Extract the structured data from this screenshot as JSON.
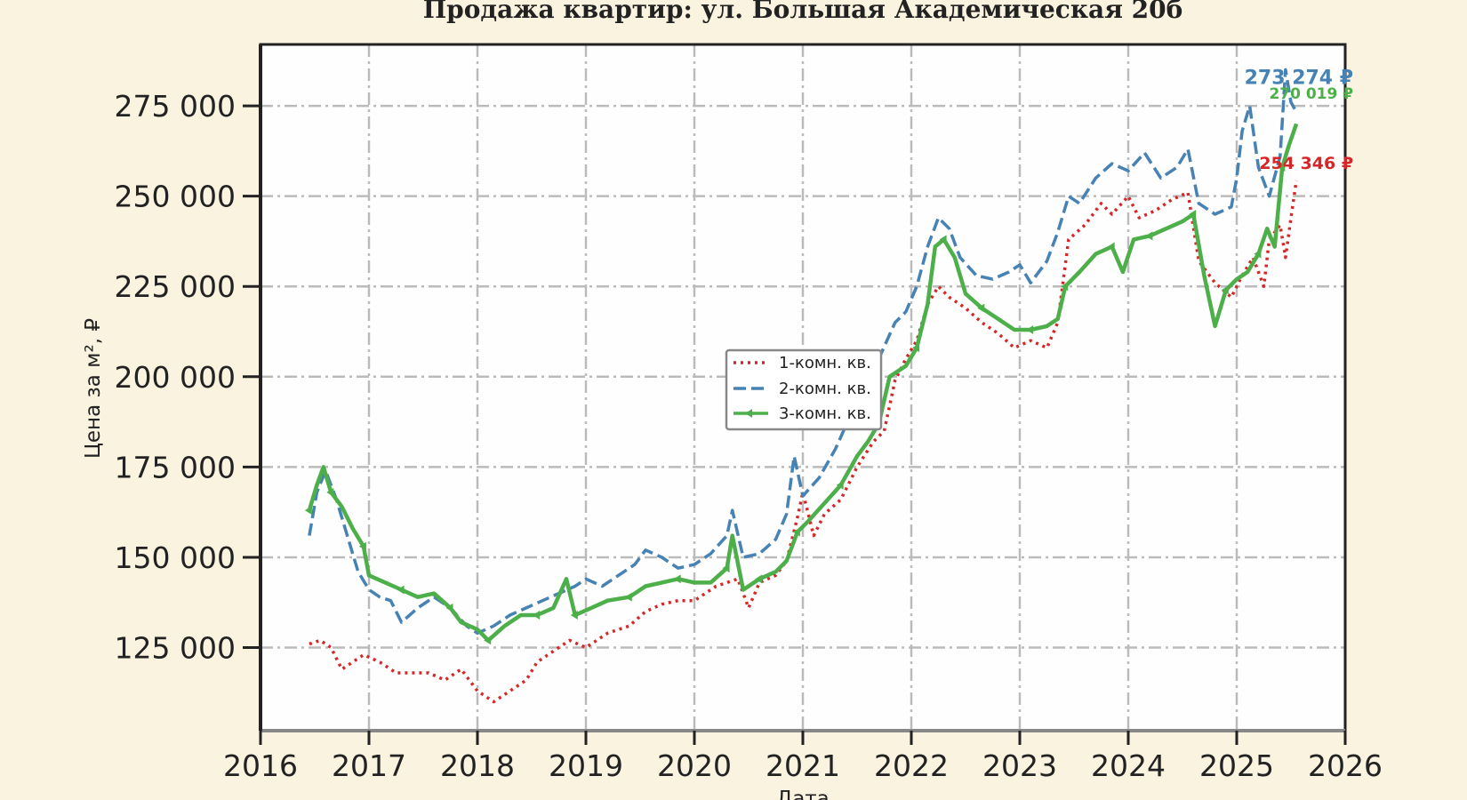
{
  "chart_data": {
    "type": "line",
    "title": "Продажа квартир: ул. Большая Академическая 20б",
    "xlabel": "Дата",
    "ylabel": "Цена за м², ₽",
    "xlim": [
      2016,
      2026
    ],
    "ylim": [
      102000,
      292000
    ],
    "x_ticks": [
      "2016",
      "2017",
      "2018",
      "2019",
      "2020",
      "2021",
      "2022",
      "2023",
      "2024",
      "2025",
      "2026"
    ],
    "y_ticks": [
      "125 000",
      "150 000",
      "175 000",
      "200 000",
      "225 000",
      "250 000",
      "275 000"
    ],
    "y_tick_values": [
      125000,
      150000,
      175000,
      200000,
      225000,
      250000,
      275000
    ],
    "grid": true,
    "legend_position": "center",
    "series": [
      {
        "name": "1-комн. кв.",
        "color": "#d62728",
        "style": "dotted",
        "final_label": "254 346 ₽",
        "points": [
          [
            2016.45,
            126000
          ],
          [
            2016.55,
            127000
          ],
          [
            2016.65,
            125000
          ],
          [
            2016.75,
            119000
          ],
          [
            2016.85,
            121000
          ],
          [
            2016.95,
            123000
          ],
          [
            2017.1,
            121000
          ],
          [
            2017.25,
            118000
          ],
          [
            2017.4,
            118000
          ],
          [
            2017.55,
            118000
          ],
          [
            2017.7,
            116000
          ],
          [
            2017.85,
            119000
          ],
          [
            2018.0,
            113000
          ],
          [
            2018.15,
            110000
          ],
          [
            2018.3,
            113000
          ],
          [
            2018.45,
            116000
          ],
          [
            2018.55,
            121000
          ],
          [
            2018.7,
            124000
          ],
          [
            2018.85,
            127000
          ],
          [
            2019.0,
            125000
          ],
          [
            2019.2,
            129000
          ],
          [
            2019.4,
            131000
          ],
          [
            2019.55,
            135000
          ],
          [
            2019.7,
            137000
          ],
          [
            2019.85,
            138000
          ],
          [
            2020.0,
            138000
          ],
          [
            2020.2,
            142000
          ],
          [
            2020.4,
            144000
          ],
          [
            2020.5,
            136000
          ],
          [
            2020.6,
            143000
          ],
          [
            2020.75,
            145000
          ],
          [
            2020.85,
            149000
          ],
          [
            2020.95,
            161000
          ],
          [
            2021.0,
            168000
          ],
          [
            2021.1,
            156000
          ],
          [
            2021.2,
            162000
          ],
          [
            2021.35,
            166000
          ],
          [
            2021.5,
            175000
          ],
          [
            2021.65,
            182000
          ],
          [
            2021.75,
            185000
          ],
          [
            2021.85,
            199000
          ],
          [
            2021.95,
            205000
          ],
          [
            2022.05,
            210000
          ],
          [
            2022.15,
            220000
          ],
          [
            2022.25,
            225000
          ],
          [
            2022.35,
            222000
          ],
          [
            2022.5,
            219000
          ],
          [
            2022.65,
            215000
          ],
          [
            2022.8,
            212000
          ],
          [
            2022.95,
            208000
          ],
          [
            2023.1,
            210000
          ],
          [
            2023.25,
            208000
          ],
          [
            2023.35,
            215000
          ],
          [
            2023.45,
            238000
          ],
          [
            2023.6,
            242000
          ],
          [
            2023.75,
            248000
          ],
          [
            2023.85,
            245000
          ],
          [
            2024.0,
            250000
          ],
          [
            2024.1,
            244000
          ],
          [
            2024.25,
            246000
          ],
          [
            2024.4,
            249000
          ],
          [
            2024.55,
            251000
          ],
          [
            2024.65,
            232000
          ],
          [
            2024.8,
            226000
          ],
          [
            2024.95,
            222000
          ],
          [
            2025.05,
            228000
          ],
          [
            2025.15,
            233000
          ],
          [
            2025.25,
            225000
          ],
          [
            2025.3,
            238000
          ],
          [
            2025.4,
            242000
          ],
          [
            2025.45,
            233000
          ],
          [
            2025.5,
            244000
          ],
          [
            2025.55,
            254346
          ]
        ]
      },
      {
        "name": "2-комн. кв.",
        "color": "#4682b4",
        "style": "dashed",
        "final_label": "273 274 ₽",
        "points": [
          [
            2016.45,
            156000
          ],
          [
            2016.52,
            168000
          ],
          [
            2016.6,
            174000
          ],
          [
            2016.7,
            166000
          ],
          [
            2016.8,
            156000
          ],
          [
            2016.9,
            146000
          ],
          [
            2017.0,
            141000
          ],
          [
            2017.1,
            139000
          ],
          [
            2017.2,
            138000
          ],
          [
            2017.3,
            132000
          ],
          [
            2017.45,
            136000
          ],
          [
            2017.6,
            139000
          ],
          [
            2017.75,
            136000
          ],
          [
            2017.9,
            131000
          ],
          [
            2018.0,
            129000
          ],
          [
            2018.15,
            131000
          ],
          [
            2018.3,
            134000
          ],
          [
            2018.45,
            136000
          ],
          [
            2018.6,
            138000
          ],
          [
            2018.75,
            140000
          ],
          [
            2018.9,
            142000
          ],
          [
            2019.0,
            144000
          ],
          [
            2019.15,
            142000
          ],
          [
            2019.3,
            145000
          ],
          [
            2019.45,
            148000
          ],
          [
            2019.55,
            152000
          ],
          [
            2019.7,
            150000
          ],
          [
            2019.85,
            147000
          ],
          [
            2020.0,
            148000
          ],
          [
            2020.15,
            151000
          ],
          [
            2020.3,
            156000
          ],
          [
            2020.35,
            163000
          ],
          [
            2020.45,
            150000
          ],
          [
            2020.6,
            151000
          ],
          [
            2020.75,
            155000
          ],
          [
            2020.85,
            162000
          ],
          [
            2020.92,
            178000
          ],
          [
            2021.0,
            167000
          ],
          [
            2021.15,
            172000
          ],
          [
            2021.3,
            180000
          ],
          [
            2021.45,
            190000
          ],
          [
            2021.55,
            196000
          ],
          [
            2021.7,
            205000
          ],
          [
            2021.85,
            215000
          ],
          [
            2021.95,
            218000
          ],
          [
            2022.05,
            225000
          ],
          [
            2022.15,
            236000
          ],
          [
            2022.25,
            244000
          ],
          [
            2022.35,
            241000
          ],
          [
            2022.45,
            233000
          ],
          [
            2022.6,
            228000
          ],
          [
            2022.75,
            227000
          ],
          [
            2022.9,
            229000
          ],
          [
            2023.0,
            231000
          ],
          [
            2023.1,
            226000
          ],
          [
            2023.25,
            232000
          ],
          [
            2023.35,
            240000
          ],
          [
            2023.45,
            250000
          ],
          [
            2023.55,
            248000
          ],
          [
            2023.7,
            255000
          ],
          [
            2023.85,
            259000
          ],
          [
            2024.0,
            257000
          ],
          [
            2024.15,
            262000
          ],
          [
            2024.3,
            255000
          ],
          [
            2024.45,
            258000
          ],
          [
            2024.55,
            263000
          ],
          [
            2024.65,
            248000
          ],
          [
            2024.8,
            245000
          ],
          [
            2024.95,
            247000
          ],
          [
            2025.0,
            255000
          ],
          [
            2025.05,
            268000
          ],
          [
            2025.12,
            275000
          ],
          [
            2025.2,
            258000
          ],
          [
            2025.3,
            250000
          ],
          [
            2025.4,
            261000
          ],
          [
            2025.45,
            285000
          ],
          [
            2025.5,
            276000
          ],
          [
            2025.55,
            273274
          ]
        ]
      },
      {
        "name": "3-комн. кв.",
        "color": "#4daf4a",
        "style": "solid-marker",
        "final_label": "270 019 ₽",
        "points": [
          [
            2016.45,
            163000
          ],
          [
            2016.52,
            170000
          ],
          [
            2016.58,
            175000
          ],
          [
            2016.65,
            168000
          ],
          [
            2016.75,
            164000
          ],
          [
            2016.85,
            158000
          ],
          [
            2016.95,
            153000
          ],
          [
            2017.0,
            145000
          ],
          [
            2017.15,
            143000
          ],
          [
            2017.3,
            141000
          ],
          [
            2017.45,
            139000
          ],
          [
            2017.6,
            140000
          ],
          [
            2017.75,
            136000
          ],
          [
            2017.85,
            132000
          ],
          [
            2018.0,
            130000
          ],
          [
            2018.1,
            127000
          ],
          [
            2018.25,
            131000
          ],
          [
            2018.4,
            134000
          ],
          [
            2018.55,
            134000
          ],
          [
            2018.7,
            136000
          ],
          [
            2018.82,
            144000
          ],
          [
            2018.9,
            134000
          ],
          [
            2019.05,
            136000
          ],
          [
            2019.2,
            138000
          ],
          [
            2019.4,
            139000
          ],
          [
            2019.55,
            142000
          ],
          [
            2019.7,
            143000
          ],
          [
            2019.85,
            144000
          ],
          [
            2020.0,
            143000
          ],
          [
            2020.15,
            143000
          ],
          [
            2020.3,
            147000
          ],
          [
            2020.35,
            156000
          ],
          [
            2020.45,
            141000
          ],
          [
            2020.6,
            144000
          ],
          [
            2020.75,
            146000
          ],
          [
            2020.85,
            149000
          ],
          [
            2020.95,
            157000
          ],
          [
            2021.05,
            160000
          ],
          [
            2021.2,
            165000
          ],
          [
            2021.35,
            170000
          ],
          [
            2021.5,
            178000
          ],
          [
            2021.6,
            182000
          ],
          [
            2021.7,
            187000
          ],
          [
            2021.8,
            200000
          ],
          [
            2021.95,
            203000
          ],
          [
            2022.05,
            208000
          ],
          [
            2022.15,
            220000
          ],
          [
            2022.22,
            236000
          ],
          [
            2022.3,
            238000
          ],
          [
            2022.4,
            233000
          ],
          [
            2022.5,
            223000
          ],
          [
            2022.65,
            219000
          ],
          [
            2022.8,
            216000
          ],
          [
            2022.95,
            213000
          ],
          [
            2023.1,
            213000
          ],
          [
            2023.25,
            214000
          ],
          [
            2023.35,
            216000
          ],
          [
            2023.42,
            225000
          ],
          [
            2023.55,
            229000
          ],
          [
            2023.7,
            234000
          ],
          [
            2023.85,
            236000
          ],
          [
            2023.95,
            229000
          ],
          [
            2024.05,
            238000
          ],
          [
            2024.2,
            239000
          ],
          [
            2024.35,
            241000
          ],
          [
            2024.5,
            243000
          ],
          [
            2024.6,
            245000
          ],
          [
            2024.7,
            228000
          ],
          [
            2024.8,
            214000
          ],
          [
            2024.9,
            224000
          ],
          [
            2025.0,
            227000
          ],
          [
            2025.1,
            229000
          ],
          [
            2025.2,
            234000
          ],
          [
            2025.28,
            241000
          ],
          [
            2025.35,
            236000
          ],
          [
            2025.42,
            258000
          ],
          [
            2025.48,
            264000
          ],
          [
            2025.55,
            270019
          ]
        ]
      }
    ]
  }
}
